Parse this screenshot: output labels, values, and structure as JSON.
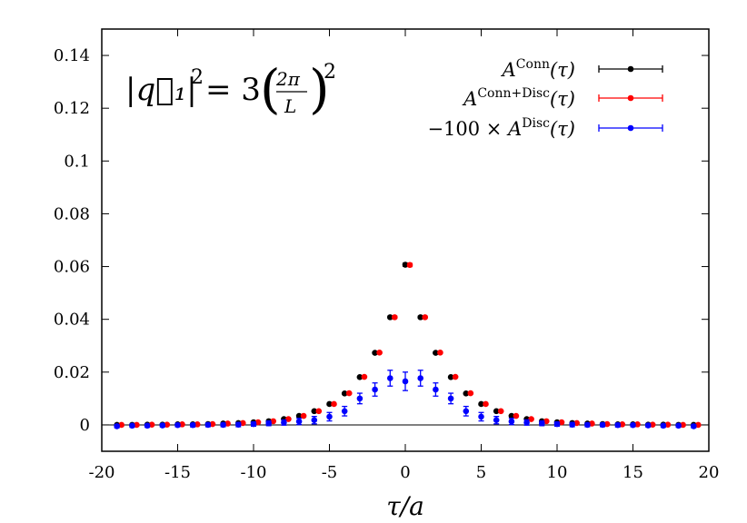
{
  "chart_data": {
    "type": "scatter",
    "title": "",
    "xlabel": "τ/a",
    "ylabel": "",
    "xlim": [
      -20,
      20
    ],
    "ylim": [
      -0.01,
      0.15
    ],
    "xticks": [
      "-20",
      "-15",
      "-10",
      "-5",
      "0",
      "5",
      "10",
      "15",
      "20"
    ],
    "yticks": [
      "0",
      "0.02",
      "0.04",
      "0.06",
      "0.08",
      "0.1",
      "0.12",
      "0.14"
    ],
    "annotation": {
      "lhs": "|q⃗₁|",
      "exp": "2",
      "eq": "= 3",
      "num": "2π",
      "den": "L",
      "outer_exp": "2"
    },
    "grid": false,
    "legend_position": "top-right",
    "x": [
      -19,
      -18,
      -17,
      -16,
      -15,
      -14,
      -13,
      -12,
      -11,
      -10,
      -9,
      -8,
      -7,
      -6,
      -5,
      -4,
      -3,
      -2,
      -1,
      0,
      1,
      2,
      3,
      4,
      5,
      6,
      7,
      8,
      9,
      10,
      11,
      12,
      13,
      14,
      15,
      16,
      17,
      18,
      19
    ],
    "series": [
      {
        "name": "A^Conn(τ)",
        "legend": {
          "base": "A",
          "sup": "Conn",
          "arg": "(τ)",
          "prefix": ""
        },
        "color": "#000000",
        "offset": 0,
        "values": [
          0.0,
          0.0,
          0.0001,
          0.0001,
          0.0002,
          0.0002,
          0.0003,
          0.0005,
          0.0007,
          0.001,
          0.0014,
          0.0022,
          0.0034,
          0.0052,
          0.0079,
          0.0119,
          0.0181,
          0.0273,
          0.0408,
          0.0607,
          0.0408,
          0.0273,
          0.0181,
          0.0119,
          0.0079,
          0.0052,
          0.0034,
          0.0022,
          0.0014,
          0.001,
          0.0007,
          0.0005,
          0.0003,
          0.0002,
          0.0002,
          0.0001,
          0.0001,
          0.0,
          0.0
        ],
        "errors": [
          0,
          0,
          0,
          0,
          0,
          0,
          0,
          0,
          0,
          0,
          0,
          0,
          0,
          0.0001,
          0.0001,
          0.0002,
          0.0002,
          0.0003,
          0.0004,
          0.0006,
          0.0004,
          0.0003,
          0.0002,
          0.0002,
          0.0001,
          0.0001,
          0,
          0,
          0,
          0,
          0,
          0,
          0,
          0,
          0,
          0,
          0,
          0,
          0
        ]
      },
      {
        "name": "A^Conn+Disc(τ)",
        "legend": {
          "base": "A",
          "sup": "Conn+Disc",
          "arg": "(τ)",
          "prefix": ""
        },
        "color": "#ff0000",
        "offset": 0.3,
        "values": [
          0.0,
          0.0,
          0.0001,
          0.0001,
          0.0002,
          0.0002,
          0.0003,
          0.0005,
          0.0007,
          0.001,
          0.0014,
          0.0022,
          0.0034,
          0.0052,
          0.0079,
          0.012,
          0.0182,
          0.0274,
          0.0408,
          0.0606,
          0.0408,
          0.0274,
          0.0182,
          0.012,
          0.0079,
          0.0052,
          0.0034,
          0.0022,
          0.0014,
          0.001,
          0.0007,
          0.0005,
          0.0003,
          0.0002,
          0.0002,
          0.0001,
          0.0001,
          0.0,
          0.0
        ],
        "errors": [
          0,
          0,
          0,
          0,
          0,
          0,
          0,
          0,
          0,
          0,
          0,
          0,
          0,
          0.0001,
          0.0001,
          0.0002,
          0.0002,
          0.0003,
          0.0004,
          0.0006,
          0.0004,
          0.0003,
          0.0002,
          0.0002,
          0.0001,
          0.0001,
          0,
          0,
          0,
          0,
          0,
          0,
          0,
          0,
          0,
          0,
          0,
          0,
          0
        ]
      },
      {
        "name": "−100 × A^Disc(τ)",
        "legend": {
          "base": "A",
          "sup": "Disc",
          "arg": "(τ)",
          "prefix": "−100 ×"
        },
        "color": "#0000ff",
        "offset": 0,
        "values": [
          -0.0005,
          -0.0003,
          -0.0003,
          -0.0002,
          -0.0001,
          -0.0001,
          0.0,
          0.0,
          0.0001,
          0.0003,
          0.0006,
          0.0009,
          0.0013,
          0.0018,
          0.0031,
          0.0052,
          0.01,
          0.0134,
          0.0177,
          0.0165,
          0.0177,
          0.0134,
          0.01,
          0.0052,
          0.0031,
          0.0018,
          0.0013,
          0.0009,
          0.0006,
          0.0003,
          0.0001,
          0.0,
          0.0,
          -0.0001,
          -0.0001,
          -0.0002,
          -0.0003,
          -0.0003,
          -0.0005
        ],
        "errors": [
          0.0006,
          0.0006,
          0.0006,
          0.0006,
          0.0006,
          0.0007,
          0.0007,
          0.0007,
          0.0008,
          0.0008,
          0.0009,
          0.001,
          0.0012,
          0.0014,
          0.0016,
          0.0018,
          0.002,
          0.0025,
          0.003,
          0.0035,
          0.003,
          0.0025,
          0.002,
          0.0018,
          0.0016,
          0.0014,
          0.0012,
          0.001,
          0.0009,
          0.0008,
          0.0008,
          0.0007,
          0.0007,
          0.0007,
          0.0006,
          0.0006,
          0.0006,
          0.0006,
          0.0006
        ]
      }
    ]
  }
}
